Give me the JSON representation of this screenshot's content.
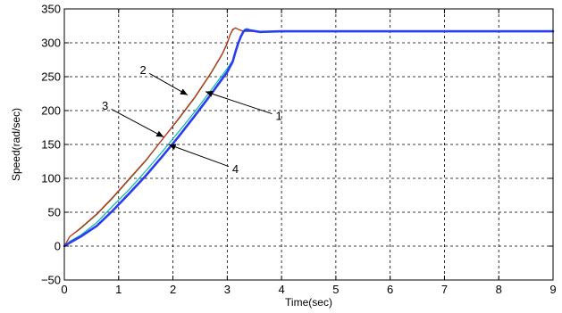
{
  "chart_data": {
    "type": "line",
    "title": "",
    "xlabel": "Time(sec)",
    "ylabel": "Speed(rad/sec)",
    "xlim": [
      0,
      9
    ],
    "ylim": [
      -50,
      350
    ],
    "xticks": [
      0,
      1,
      2,
      3,
      4,
      5,
      6,
      7,
      8,
      9
    ],
    "yticks": [
      -50,
      0,
      50,
      100,
      150,
      200,
      250,
      300,
      350
    ],
    "grid": true,
    "series": [
      {
        "name": "1",
        "color": "#00b8b8",
        "width": 1.2,
        "x": [
          0,
          0.1,
          0.3,
          0.6,
          0.9,
          1.2,
          1.5,
          1.8,
          2.1,
          2.4,
          2.7,
          3.0,
          3.1,
          3.17,
          3.22,
          3.27,
          3.32,
          3.37,
          3.45,
          3.55,
          3.7,
          4.0,
          9.0
        ],
        "y": [
          0,
          7,
          16,
          35,
          60,
          84,
          111,
          139,
          168,
          198,
          230,
          262,
          274,
          289,
          303,
          313,
          320,
          321,
          318,
          316,
          317,
          317,
          317
        ]
      },
      {
        "name": "2",
        "color": "#1a7a1a",
        "width": 1.3,
        "x": [
          0,
          0.1,
          0.3,
          0.6,
          0.9,
          1.2,
          1.5,
          1.8,
          2.1,
          2.4,
          2.7,
          2.9,
          3.0,
          3.05,
          3.1,
          3.15,
          3.2,
          3.3,
          3.4,
          3.6,
          9.0
        ],
        "y": [
          0,
          14,
          26,
          47,
          72,
          99,
          126,
          157,
          187,
          219,
          255,
          282,
          299,
          311,
          319,
          322,
          320,
          317,
          317,
          317,
          317
        ]
      },
      {
        "name": "3",
        "color": "#ee2222",
        "width": 1.0,
        "x": [
          0,
          0.1,
          0.3,
          0.6,
          0.9,
          1.2,
          1.5,
          1.8,
          2.1,
          2.4,
          2.7,
          2.9,
          3.0,
          3.05,
          3.1,
          3.15,
          3.2,
          3.3,
          3.4,
          3.6,
          9.0
        ],
        "y": [
          0,
          14,
          27,
          48,
          73,
          100,
          127,
          157,
          188,
          220,
          256,
          283,
          300,
          312,
          320,
          322,
          320,
          317,
          317,
          317,
          317
        ]
      },
      {
        "name": "4",
        "color": "#2a3cf0",
        "width": 2.6,
        "x": [
          0,
          0.1,
          0.3,
          0.6,
          0.9,
          1.2,
          1.5,
          1.8,
          2.1,
          2.4,
          2.7,
          3.0,
          3.1,
          3.15,
          3.2,
          3.25,
          3.3,
          3.35,
          3.45,
          3.6,
          4.0,
          9.0
        ],
        "y": [
          0,
          5,
          14,
          30,
          53,
          78,
          104,
          132,
          161,
          192,
          224,
          257,
          272,
          286,
          299,
          309,
          317,
          319,
          318,
          316,
          317,
          317
        ]
      }
    ],
    "annotations": [
      {
        "label": "2",
        "text_at": [
          1.45,
          260
        ],
        "arrow_to": [
          2.27,
          223
        ]
      },
      {
        "label": "1",
        "text_at": [
          3.95,
          192
        ],
        "arrow_to": [
          2.6,
          228
        ]
      },
      {
        "label": "3",
        "text_at": [
          0.75,
          207
        ],
        "arrow_to": [
          1.83,
          161
        ]
      },
      {
        "label": "4",
        "text_at": [
          3.15,
          114
        ],
        "arrow_to": [
          1.92,
          150
        ]
      }
    ]
  }
}
